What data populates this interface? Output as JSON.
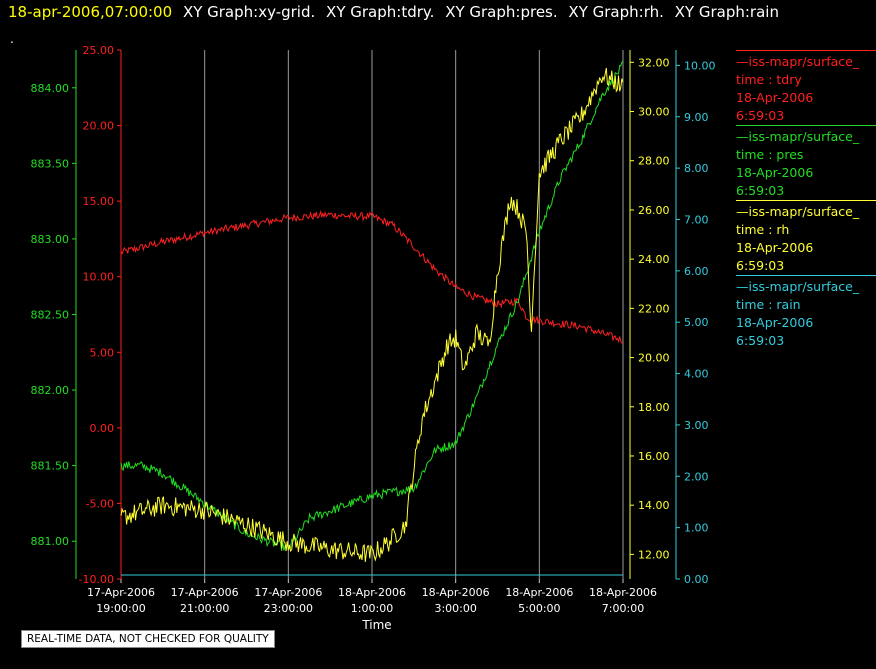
{
  "header": {
    "timestamp": "18-apr-2006,07:00:00",
    "graphs": [
      "XY Graph:xy-grid.",
      "XY Graph:tdry.",
      "XY Graph:pres.",
      "XY Graph:rh.",
      "XY Graph:rain"
    ]
  },
  "marker": ".",
  "legend": [
    {
      "source": "—iss-mapr/surface_",
      "var": "time : tdry",
      "date": "18-Apr-2006",
      "time": "6:59:03",
      "color": "#ff2020"
    },
    {
      "source": "—iss-mapr/surface_",
      "var": "time : pres",
      "date": "18-Apr-2006",
      "time": "6:59:03",
      "color": "#22dd22"
    },
    {
      "source": "—iss-mapr/surface_",
      "var": "time : rh",
      "date": "18-Apr-2006",
      "time": "6:59:03",
      "color": "#ffff33"
    },
    {
      "source": "—iss-mapr/surface_",
      "var": "time : rain",
      "date": "18-Apr-2006",
      "time": "6:59:03",
      "color": "#33ccdd"
    }
  ],
  "footer": {
    "warning": "REAL-TIME DATA, NOT CHECKED FOR QUALITY"
  },
  "chart_data": {
    "type": "line",
    "xlabel": "Time",
    "x_unit": "hours since 17-Apr-2006 19:00",
    "x_range": [
      0,
      12
    ],
    "x_ticks": [
      {
        "x": 0,
        "date": "17-Apr-2006",
        "time": "19:00:00"
      },
      {
        "x": 2,
        "date": "17-Apr-2006",
        "time": "21:00:00"
      },
      {
        "x": 4,
        "date": "17-Apr-2006",
        "time": "23:00:00"
      },
      {
        "x": 6,
        "date": "18-Apr-2006",
        "time": "1:00:00"
      },
      {
        "x": 8,
        "date": "18-Apr-2006",
        "time": "3:00:00"
      },
      {
        "x": 10,
        "date": "18-Apr-2006",
        "time": "5:00:00"
      },
      {
        "x": 12,
        "date": "18-Apr-2006",
        "time": "7:00:00"
      }
    ],
    "grid": "vertical",
    "axes": [
      {
        "name": "tdry",
        "color": "#ff2020",
        "ylim": [
          -10,
          25
        ],
        "ticks": [
          -10,
          -5,
          0,
          5,
          10,
          15,
          20,
          25
        ],
        "labels": [
          "-10.00",
          "-5.00",
          "0.00",
          "5.00",
          "10.00",
          "15.00",
          "20.00",
          "25.00"
        ]
      },
      {
        "name": "pres",
        "color": "#22dd22",
        "ylim": [
          880.75,
          884.25
        ],
        "ticks": [
          881,
          881.5,
          882,
          882.5,
          883,
          883.5,
          884
        ],
        "labels": [
          "881.00",
          "881.50",
          "882.00",
          "882.50",
          "883.00",
          "883.50",
          "884.00"
        ]
      },
      {
        "name": "rh",
        "color": "#ffff33",
        "ylim": [
          11,
          32.5
        ],
        "ticks": [
          12,
          14,
          16,
          18,
          20,
          22,
          24,
          26,
          28,
          30,
          32
        ],
        "labels": [
          "12.00",
          "14.00",
          "16.00",
          "18.00",
          "20.00",
          "22.00",
          "24.00",
          "26.00",
          "28.00",
          "30.00",
          "32.00"
        ]
      },
      {
        "name": "rain",
        "color": "#33ccdd",
        "ylim": [
          0,
          10.3
        ],
        "ticks": [
          0,
          1,
          2,
          3,
          4,
          5,
          6,
          7,
          8,
          9,
          10
        ],
        "labels": [
          "0.00",
          "1.00",
          "2.00",
          "3.00",
          "4.00",
          "5.00",
          "6.00",
          "7.00",
          "8.00",
          "9.00",
          "10.00"
        ]
      }
    ],
    "series": [
      {
        "name": "time : tdry",
        "axis": "tdry",
        "noise": 0.25,
        "x": [
          0,
          1,
          2,
          3,
          4,
          5,
          5.5,
          6,
          6.5,
          7,
          7.5,
          8,
          8.5,
          9,
          9.5,
          9.7,
          10,
          11,
          12
        ],
        "y": [
          11.6,
          12.3,
          12.9,
          13.4,
          13.9,
          14.1,
          14.0,
          14.0,
          13.4,
          12.0,
          10.5,
          9.3,
          8.6,
          8.2,
          8.4,
          7.3,
          7.1,
          6.7,
          5.8
        ]
      },
      {
        "name": "time : pres",
        "axis": "pres",
        "noise": 0.03,
        "x": [
          0,
          0.5,
          1,
          2,
          3,
          4,
          4.5,
          5,
          6,
          7,
          7.5,
          8,
          8.5,
          9,
          9.5,
          10,
          10.5,
          11,
          11.5,
          12
        ],
        "y": [
          881.5,
          881.5,
          881.45,
          881.25,
          881.05,
          880.95,
          881.15,
          881.2,
          881.3,
          881.35,
          881.6,
          881.65,
          881.95,
          882.3,
          882.6,
          883.05,
          883.4,
          883.65,
          883.95,
          884.15
        ]
      },
      {
        "name": "time : rh",
        "axis": "rh",
        "noise": 0.4,
        "x": [
          0,
          1,
          2,
          3,
          4,
          5,
          6,
          6.4,
          6.8,
          7,
          7.2,
          7.5,
          7.8,
          8,
          8.2,
          8.5,
          8.8,
          9,
          9.3,
          9.5,
          9.7,
          9.8,
          10,
          10.5,
          11,
          11.5,
          12
        ],
        "y": [
          13.5,
          14,
          13.8,
          13.2,
          12.5,
          12.2,
          12.0,
          12.5,
          13.2,
          15.5,
          17.5,
          19.0,
          20.5,
          20.8,
          19.5,
          21.0,
          20.5,
          23.5,
          26.5,
          26.0,
          25.0,
          21.0,
          27.5,
          28.8,
          29.8,
          31.5,
          31.0
        ]
      },
      {
        "name": "time : rain",
        "axis": "rain",
        "noise": 0,
        "x": [
          0,
          12
        ],
        "y": [
          0,
          0
        ]
      }
    ]
  }
}
